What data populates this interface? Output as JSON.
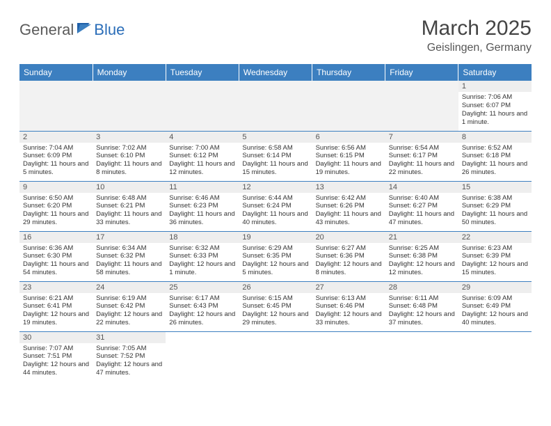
{
  "logo": {
    "general": "General",
    "blue": "Blue"
  },
  "title": "March 2025",
  "location": "Geislingen, Germany",
  "colors": {
    "header_bg": "#3c7fc0",
    "header_text": "#ffffff",
    "daynum_bg": "#eeeeee",
    "border": "#3c7fc0",
    "logo_gray": "#5a5a5a",
    "logo_blue": "#2a6db8"
  },
  "weekdays": [
    "Sunday",
    "Monday",
    "Tuesday",
    "Wednesday",
    "Thursday",
    "Friday",
    "Saturday"
  ],
  "weeks": [
    [
      null,
      null,
      null,
      null,
      null,
      null,
      {
        "n": "1",
        "sunrise": "Sunrise: 7:06 AM",
        "sunset": "Sunset: 6:07 PM",
        "daylight": "Daylight: 11 hours and 1 minute."
      }
    ],
    [
      {
        "n": "2",
        "sunrise": "Sunrise: 7:04 AM",
        "sunset": "Sunset: 6:09 PM",
        "daylight": "Daylight: 11 hours and 5 minutes."
      },
      {
        "n": "3",
        "sunrise": "Sunrise: 7:02 AM",
        "sunset": "Sunset: 6:10 PM",
        "daylight": "Daylight: 11 hours and 8 minutes."
      },
      {
        "n": "4",
        "sunrise": "Sunrise: 7:00 AM",
        "sunset": "Sunset: 6:12 PM",
        "daylight": "Daylight: 11 hours and 12 minutes."
      },
      {
        "n": "5",
        "sunrise": "Sunrise: 6:58 AM",
        "sunset": "Sunset: 6:14 PM",
        "daylight": "Daylight: 11 hours and 15 minutes."
      },
      {
        "n": "6",
        "sunrise": "Sunrise: 6:56 AM",
        "sunset": "Sunset: 6:15 PM",
        "daylight": "Daylight: 11 hours and 19 minutes."
      },
      {
        "n": "7",
        "sunrise": "Sunrise: 6:54 AM",
        "sunset": "Sunset: 6:17 PM",
        "daylight": "Daylight: 11 hours and 22 minutes."
      },
      {
        "n": "8",
        "sunrise": "Sunrise: 6:52 AM",
        "sunset": "Sunset: 6:18 PM",
        "daylight": "Daylight: 11 hours and 26 minutes."
      }
    ],
    [
      {
        "n": "9",
        "sunrise": "Sunrise: 6:50 AM",
        "sunset": "Sunset: 6:20 PM",
        "daylight": "Daylight: 11 hours and 29 minutes."
      },
      {
        "n": "10",
        "sunrise": "Sunrise: 6:48 AM",
        "sunset": "Sunset: 6:21 PM",
        "daylight": "Daylight: 11 hours and 33 minutes."
      },
      {
        "n": "11",
        "sunrise": "Sunrise: 6:46 AM",
        "sunset": "Sunset: 6:23 PM",
        "daylight": "Daylight: 11 hours and 36 minutes."
      },
      {
        "n": "12",
        "sunrise": "Sunrise: 6:44 AM",
        "sunset": "Sunset: 6:24 PM",
        "daylight": "Daylight: 11 hours and 40 minutes."
      },
      {
        "n": "13",
        "sunrise": "Sunrise: 6:42 AM",
        "sunset": "Sunset: 6:26 PM",
        "daylight": "Daylight: 11 hours and 43 minutes."
      },
      {
        "n": "14",
        "sunrise": "Sunrise: 6:40 AM",
        "sunset": "Sunset: 6:27 PM",
        "daylight": "Daylight: 11 hours and 47 minutes."
      },
      {
        "n": "15",
        "sunrise": "Sunrise: 6:38 AM",
        "sunset": "Sunset: 6:29 PM",
        "daylight": "Daylight: 11 hours and 50 minutes."
      }
    ],
    [
      {
        "n": "16",
        "sunrise": "Sunrise: 6:36 AM",
        "sunset": "Sunset: 6:30 PM",
        "daylight": "Daylight: 11 hours and 54 minutes."
      },
      {
        "n": "17",
        "sunrise": "Sunrise: 6:34 AM",
        "sunset": "Sunset: 6:32 PM",
        "daylight": "Daylight: 11 hours and 58 minutes."
      },
      {
        "n": "18",
        "sunrise": "Sunrise: 6:32 AM",
        "sunset": "Sunset: 6:33 PM",
        "daylight": "Daylight: 12 hours and 1 minute."
      },
      {
        "n": "19",
        "sunrise": "Sunrise: 6:29 AM",
        "sunset": "Sunset: 6:35 PM",
        "daylight": "Daylight: 12 hours and 5 minutes."
      },
      {
        "n": "20",
        "sunrise": "Sunrise: 6:27 AM",
        "sunset": "Sunset: 6:36 PM",
        "daylight": "Daylight: 12 hours and 8 minutes."
      },
      {
        "n": "21",
        "sunrise": "Sunrise: 6:25 AM",
        "sunset": "Sunset: 6:38 PM",
        "daylight": "Daylight: 12 hours and 12 minutes."
      },
      {
        "n": "22",
        "sunrise": "Sunrise: 6:23 AM",
        "sunset": "Sunset: 6:39 PM",
        "daylight": "Daylight: 12 hours and 15 minutes."
      }
    ],
    [
      {
        "n": "23",
        "sunrise": "Sunrise: 6:21 AM",
        "sunset": "Sunset: 6:41 PM",
        "daylight": "Daylight: 12 hours and 19 minutes."
      },
      {
        "n": "24",
        "sunrise": "Sunrise: 6:19 AM",
        "sunset": "Sunset: 6:42 PM",
        "daylight": "Daylight: 12 hours and 22 minutes."
      },
      {
        "n": "25",
        "sunrise": "Sunrise: 6:17 AM",
        "sunset": "Sunset: 6:43 PM",
        "daylight": "Daylight: 12 hours and 26 minutes."
      },
      {
        "n": "26",
        "sunrise": "Sunrise: 6:15 AM",
        "sunset": "Sunset: 6:45 PM",
        "daylight": "Daylight: 12 hours and 29 minutes."
      },
      {
        "n": "27",
        "sunrise": "Sunrise: 6:13 AM",
        "sunset": "Sunset: 6:46 PM",
        "daylight": "Daylight: 12 hours and 33 minutes."
      },
      {
        "n": "28",
        "sunrise": "Sunrise: 6:11 AM",
        "sunset": "Sunset: 6:48 PM",
        "daylight": "Daylight: 12 hours and 37 minutes."
      },
      {
        "n": "29",
        "sunrise": "Sunrise: 6:09 AM",
        "sunset": "Sunset: 6:49 PM",
        "daylight": "Daylight: 12 hours and 40 minutes."
      }
    ],
    [
      {
        "n": "30",
        "sunrise": "Sunrise: 7:07 AM",
        "sunset": "Sunset: 7:51 PM",
        "daylight": "Daylight: 12 hours and 44 minutes."
      },
      {
        "n": "31",
        "sunrise": "Sunrise: 7:05 AM",
        "sunset": "Sunset: 7:52 PM",
        "daylight": "Daylight: 12 hours and 47 minutes."
      },
      null,
      null,
      null,
      null,
      null
    ]
  ]
}
